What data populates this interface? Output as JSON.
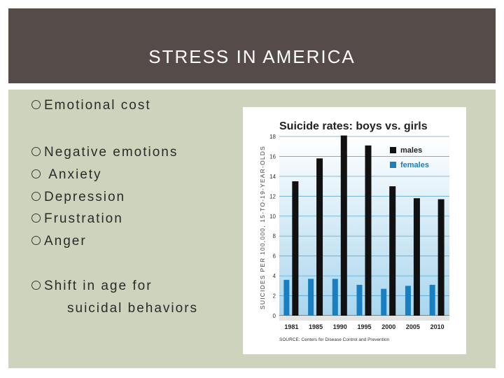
{
  "slide": {
    "title": "STRESS IN AMERICA",
    "bullets": [
      {
        "text": "Emotional cost"
      },
      {
        "text": "Negative emotions"
      },
      {
        "text": " Anxiety"
      },
      {
        "text": "Depression"
      },
      {
        "text": "Frustration"
      },
      {
        "text": "Anger"
      },
      {
        "text": "Shift in age for"
      }
    ],
    "bullet_continuation": "suicidal behaviors"
  },
  "colors": {
    "title_band": "#554b48",
    "content_band": "#cdd3bc",
    "males": "#111111",
    "females": "#1a7fc0",
    "plot_bg_top": "#ffffff",
    "plot_bg_bottom": "#a9d6ee"
  },
  "chart_data": {
    "type": "bar",
    "title": "Suicide rates: boys vs. girls",
    "ylabel": "SUICIDES PER 100,000, 15-TO-19-YEAR-OLDS",
    "source": "SOURCE: Centers for Disease Control and Prevention",
    "categories": [
      "1981",
      "1985",
      "1990",
      "1995",
      "2000",
      "2005",
      "2010"
    ],
    "series": [
      {
        "name": "males",
        "values": [
          13.5,
          15.8,
          18.1,
          17.1,
          13.0,
          11.8,
          11.7
        ]
      },
      {
        "name": "females",
        "values": [
          3.6,
          3.7,
          3.7,
          3.1,
          2.7,
          3.0,
          3.1
        ]
      }
    ],
    "ylim": [
      0,
      18
    ],
    "yticks": [
      "0",
      "2",
      "4",
      "6",
      "8",
      "10",
      "12",
      "14",
      "16",
      "18"
    ],
    "legend_position": "top-right",
    "grid": true
  }
}
